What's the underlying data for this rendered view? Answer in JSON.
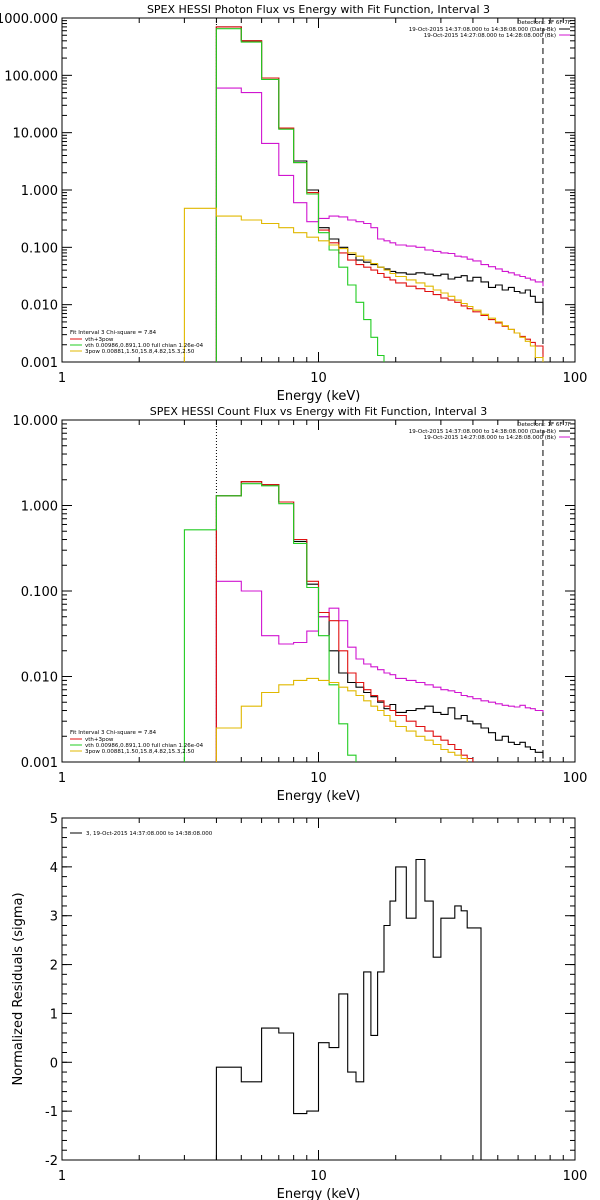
{
  "colors": {
    "black": "#000000",
    "magenta": "#d015d0",
    "green": "#22cc22",
    "gold": "#e0b800",
    "red": "#e01010"
  },
  "chart_data": [
    {
      "type": "line",
      "title": "SPEX HESSI Photon Flux vs Energy with Fit Function, Interval 3",
      "xlabel": "Energy (keV)",
      "ylabel": "",
      "xscale": "log",
      "yscale": "log",
      "xlim": [
        1,
        100
      ],
      "ylim": [
        0.001,
        1000
      ],
      "xticks": [
        1,
        10,
        100
      ],
      "xtick_labels": [
        "1",
        "10",
        "100"
      ],
      "yticks": [
        0.001,
        0.01,
        0.1,
        1,
        10,
        100,
        1000
      ],
      "ytick_labels": [
        "0.001",
        "0.010",
        "0.100",
        "1.000",
        "10.000",
        "100.000",
        "1000.000"
      ],
      "vlines": [
        {
          "x": 4.0,
          "style": "dotted"
        },
        {
          "x": 75.0,
          "style": "dashed"
        }
      ],
      "detectors_label": "Detectors: 1F 6F 7F",
      "top_legend": [
        {
          "text": "19-Oct-2015 14:37:08.000 to 14:38:08.000 (Data-Bk)",
          "color": "#000000"
        },
        {
          "text": "19-Oct-2015 14:27:08.000 to 14:28:08.000 (Bk)",
          "color": "#d015d0"
        }
      ],
      "fit_header": "Fit Interval 3   Chi-square = 7.84",
      "fit_legend": [
        {
          "text": "vth+3pow",
          "color": "#e01010"
        },
        {
          "text": "vth 0.00986,0.891,1.00  full chian 1.26e-04",
          "color": "#22cc22"
        },
        {
          "text": "3pow 0.00881,1.50,15.8,4.82,15.3,2.50",
          "color": "#e0b800"
        }
      ],
      "x_edges": [
        3.0,
        4.0,
        5.0,
        6.0,
        7.0,
        8.0,
        9.0,
        10.0,
        11.0,
        12.0,
        13.0,
        14.0,
        15.0,
        16.0,
        17.0,
        18.0,
        19.0,
        20.0,
        22.0,
        24.0,
        26.0,
        28.0,
        30.0,
        32.0,
        34.0,
        36.0,
        38.0,
        40.0,
        43.0,
        46.0,
        49.0,
        52.0,
        55.0,
        58.0,
        61.0,
        64.0,
        67.0,
        70.0,
        75.0
      ],
      "series": [
        {
          "name": "",
          "color": "#000000",
          "start": 1,
          "values": [
            700,
            400,
            90,
            12,
            3.2,
            1.0,
            0.22,
            0.14,
            0.1,
            0.075,
            0.06,
            0.055,
            0.05,
            0.045,
            0.042,
            0.038,
            0.036,
            0.034,
            0.036,
            0.034,
            0.032,
            0.034,
            0.028,
            0.03,
            0.032,
            0.026,
            0.03,
            0.025,
            0.02,
            0.022,
            0.018,
            0.02,
            0.017,
            0.016,
            0.018,
            0.014,
            0.011,
            0.0065
          ]
        },
        {
          "name": "",
          "color": "#d015d0",
          "start": 1,
          "values": [
            60,
            50,
            6.5,
            1.8,
            0.6,
            0.28,
            0.32,
            0.35,
            0.34,
            0.3,
            0.28,
            0.26,
            0.22,
            0.14,
            0.13,
            0.12,
            0.11,
            0.105,
            0.1,
            0.09,
            0.085,
            0.08,
            0.078,
            0.07,
            0.068,
            0.062,
            0.058,
            0.05,
            0.046,
            0.042,
            0.038,
            0.036,
            0.033,
            0.031,
            0.029,
            0.027,
            0.025,
            0.021
          ]
        },
        {
          "name": "",
          "color": "#e01010",
          "start": 1,
          "values": [
            700,
            400,
            90,
            12,
            3.0,
            0.9,
            0.2,
            0.12,
            0.08,
            0.06,
            0.05,
            0.045,
            0.04,
            0.035,
            0.03,
            0.027,
            0.024,
            0.021,
            0.019,
            0.017,
            0.015,
            0.013,
            0.012,
            0.011,
            0.0095,
            0.0085,
            0.0075,
            0.0065,
            0.0055,
            0.0048,
            0.0042,
            0.0037,
            0.0032,
            0.0028,
            0.0025,
            0.0022,
            0.0019,
            0.0012
          ]
        },
        {
          "name": "",
          "color": "#22cc22",
          "start": 1,
          "values": [
            650,
            380,
            85,
            11.5,
            3.0,
            0.85,
            0.18,
            0.09,
            0.045,
            0.022,
            0.011,
            0.0055,
            0.0027,
            0.0013
          ]
        },
        {
          "name": "",
          "color": "#e0b800",
          "start": 0,
          "values": [
            0.48,
            0.35,
            0.3,
            0.26,
            0.22,
            0.18,
            0.15,
            0.13,
            0.11,
            0.095,
            0.08,
            0.07,
            0.06,
            0.052,
            0.045,
            0.04,
            0.035,
            0.031,
            0.027,
            0.024,
            0.021,
            0.018,
            0.016,
            0.014,
            0.012,
            0.0105,
            0.0093,
            0.008,
            0.0068,
            0.0058,
            0.005,
            0.0043,
            0.0037,
            0.0032,
            0.0027,
            0.0023,
            0.0019,
            0.0012
          ]
        }
      ]
    },
    {
      "type": "line",
      "title": "SPEX HESSI Count Flux vs Energy with Fit Function, Interval 3",
      "xlabel": "Energy (keV)",
      "ylabel": "",
      "xscale": "log",
      "yscale": "log",
      "xlim": [
        1,
        100
      ],
      "ylim": [
        0.001,
        10
      ],
      "xticks": [
        1,
        10,
        100
      ],
      "xtick_labels": [
        "1",
        "10",
        "100"
      ],
      "yticks": [
        0.001,
        0.01,
        0.1,
        1,
        10
      ],
      "ytick_labels": [
        "0.001",
        "0.010",
        "0.100",
        "1.000",
        "10.000"
      ],
      "vlines": [
        {
          "x": 4.0,
          "style": "dotted"
        },
        {
          "x": 75.0,
          "style": "dashed"
        }
      ],
      "detectors_label": "Detectors: 1F 6F 7F",
      "top_legend": [
        {
          "text": "19-Oct-2015 14:37:08.000 to 14:38:08.000 (Data-Bk)",
          "color": "#000000"
        },
        {
          "text": "19-Oct-2015 14:27:08.000 to 14:28:08.000 (Bk)",
          "color": "#d015d0"
        }
      ],
      "fit_header": "Fit Interval 3   Chi-square = 7.84",
      "fit_legend": [
        {
          "text": "vth+3pow",
          "color": "#e01010"
        },
        {
          "text": "vth 0.00986,0.891,1.00  full chian 1.26e-04",
          "color": "#22cc22"
        },
        {
          "text": "3pow 0.00881,1.50,15.8,4.82,15.3,2.50",
          "color": "#e0b800"
        }
      ],
      "x_edges": [
        3.0,
        4.0,
        5.0,
        6.0,
        7.0,
        8.0,
        9.0,
        10.0,
        11.0,
        12.0,
        13.0,
        14.0,
        15.0,
        16.0,
        17.0,
        18.0,
        19.0,
        20.0,
        22.0,
        24.0,
        26.0,
        28.0,
        30.0,
        32.0,
        34.0,
        36.0,
        38.0,
        40.0,
        43.0,
        46.0,
        49.0,
        52.0,
        55.0,
        58.0,
        61.0,
        64.0,
        67.0,
        70.0,
        75.0
      ],
      "series": [
        {
          "name": "",
          "color": "#000000",
          "start": 1,
          "values": [
            1.3,
            1.9,
            1.75,
            1.1,
            0.38,
            0.12,
            0.05,
            0.02,
            0.011,
            0.0085,
            0.0075,
            0.0065,
            0.0058,
            0.005,
            0.0042,
            0.0047,
            0.0038,
            0.004,
            0.0042,
            0.0045,
            0.0038,
            0.0036,
            0.0043,
            0.0032,
            0.0035,
            0.003,
            0.0028,
            0.0025,
            0.0022,
            0.0018,
            0.002,
            0.0017,
            0.0016,
            0.0017,
            0.0015,
            0.0014,
            0.0013,
            0.0011
          ]
        },
        {
          "name": "",
          "color": "#d015d0",
          "start": 1,
          "values": [
            0.13,
            0.1,
            0.03,
            0.024,
            0.025,
            0.034,
            0.05,
            0.063,
            0.045,
            0.022,
            0.016,
            0.014,
            0.013,
            0.012,
            0.011,
            0.0105,
            0.0095,
            0.009,
            0.0085,
            0.008,
            0.0075,
            0.007,
            0.0068,
            0.0065,
            0.006,
            0.0058,
            0.0055,
            0.0052,
            0.005,
            0.0048,
            0.0046,
            0.0045,
            0.0044,
            0.0046,
            0.0043,
            0.0042,
            0.004,
            0.0038
          ]
        },
        {
          "name": "",
          "color": "#e01010",
          "start": 1,
          "values": [
            1.3,
            1.9,
            1.75,
            1.1,
            0.4,
            0.13,
            0.056,
            0.045,
            0.02,
            0.011,
            0.0085,
            0.007,
            0.006,
            0.0052,
            0.0045,
            0.004,
            0.0035,
            0.003,
            0.0026,
            0.0023,
            0.002,
            0.0018,
            0.0016,
            0.0014,
            0.0012,
            0.0011
          ]
        },
        {
          "name": "",
          "color": "#22cc22",
          "start": 0,
          "values": [
            0.52,
            1.3,
            1.8,
            1.7,
            1.05,
            0.36,
            0.11,
            0.03,
            0.008,
            0.0028,
            0.0012
          ]
        },
        {
          "name": "",
          "color": "#e0b800",
          "start": 1,
          "values": [
            0.0025,
            0.0045,
            0.0065,
            0.008,
            0.009,
            0.0095,
            0.009,
            0.0085,
            0.0075,
            0.0068,
            0.006,
            0.0052,
            0.0045,
            0.004,
            0.0035,
            0.003,
            0.0026,
            0.0023,
            0.002,
            0.0018,
            0.0016,
            0.0014,
            0.0013,
            0.0012,
            0.0011
          ]
        }
      ]
    },
    {
      "type": "line",
      "title": "",
      "xlabel": "Energy (keV)",
      "ylabel": "Normalized Residuals (sigma)",
      "xscale": "log",
      "yscale": "linear",
      "xlim": [
        1,
        100
      ],
      "ylim": [
        -2,
        5
      ],
      "xticks": [
        1,
        10,
        100
      ],
      "xtick_labels": [
        "1",
        "10",
        "100"
      ],
      "yticks": [
        -2,
        -1,
        0,
        1,
        2,
        3,
        4,
        5
      ],
      "ytick_labels": [
        "-2",
        "-1",
        "0",
        "1",
        "2",
        "3",
        "4",
        "5"
      ],
      "legend": [
        {
          "text": "3, 19-Oct-2015 14:37:08.000 to 14:38:08.000",
          "color": "#000000"
        }
      ],
      "x_edges": [
        4.0,
        5.0,
        6.0,
        7.0,
        8.0,
        9.0,
        10.0,
        11.0,
        12.0,
        13.0,
        14.0,
        15.0,
        16.0,
        17.0,
        18.0,
        19.0,
        20.0,
        22.0,
        24.0,
        26.0,
        28.0,
        30.0,
        32.0,
        34.0,
        36.0,
        38.0,
        40.0,
        43.0,
        46.0,
        49.0,
        52.0,
        55.0,
        58.0,
        61.0,
        64.0,
        67.0,
        70.0,
        75.0
      ],
      "series": [
        {
          "name": "",
          "color": "#000000",
          "start": 0,
          "drop_to_bottom": true,
          "values": [
            -0.1,
            -0.4,
            0.7,
            0.6,
            -1.05,
            -1.0,
            0.4,
            0.3,
            1.4,
            -0.2,
            -0.4,
            1.85,
            0.55,
            1.85,
            2.8,
            3.3,
            4.0,
            2.95,
            4.15,
            3.3,
            2.15,
            2.95,
            2.95,
            3.2,
            3.1,
            2.75,
            2.75
          ]
        }
      ]
    }
  ]
}
